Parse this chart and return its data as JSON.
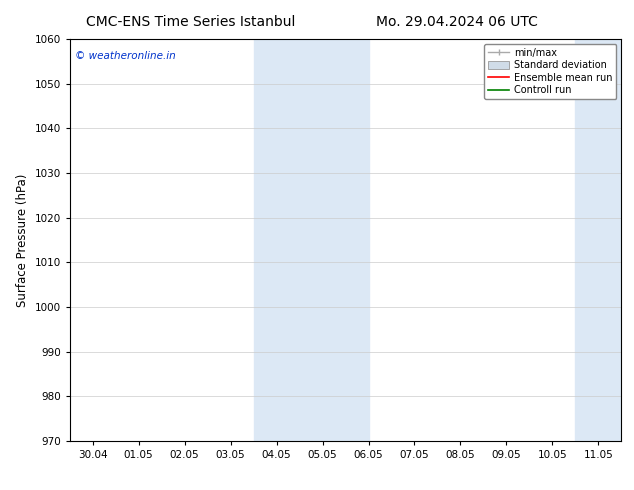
{
  "title_left": "CMC-ENS Time Series Istanbul",
  "title_right": "Mo. 29.04.2024 06 UTC",
  "ylabel": "Surface Pressure (hPa)",
  "ylim": [
    970,
    1060
  ],
  "yticks": [
    970,
    980,
    990,
    1000,
    1010,
    1020,
    1030,
    1040,
    1050,
    1060
  ],
  "xlabels": [
    "30.04",
    "01.05",
    "02.05",
    "03.05",
    "04.05",
    "05.05",
    "06.05",
    "07.05",
    "08.05",
    "09.05",
    "10.05",
    "11.05"
  ],
  "x_positions": [
    0,
    1,
    2,
    3,
    4,
    5,
    6,
    7,
    8,
    9,
    10,
    11
  ],
  "shaded_bands": [
    {
      "xmin": 3.5,
      "xmax": 6.0
    },
    {
      "xmin": 10.5,
      "xmax": 11.5
    }
  ],
  "band_color": "#dce8f5",
  "watermark": "© weatheronline.in",
  "watermark_color": "#0033cc",
  "legend_labels": [
    "min/max",
    "Standard deviation",
    "Ensemble mean run",
    "Controll run"
  ],
  "background_color": "#ffffff",
  "grid_color": "#cccccc",
  "title_fontsize": 10,
  "tick_fontsize": 7.5,
  "ylabel_fontsize": 8.5
}
